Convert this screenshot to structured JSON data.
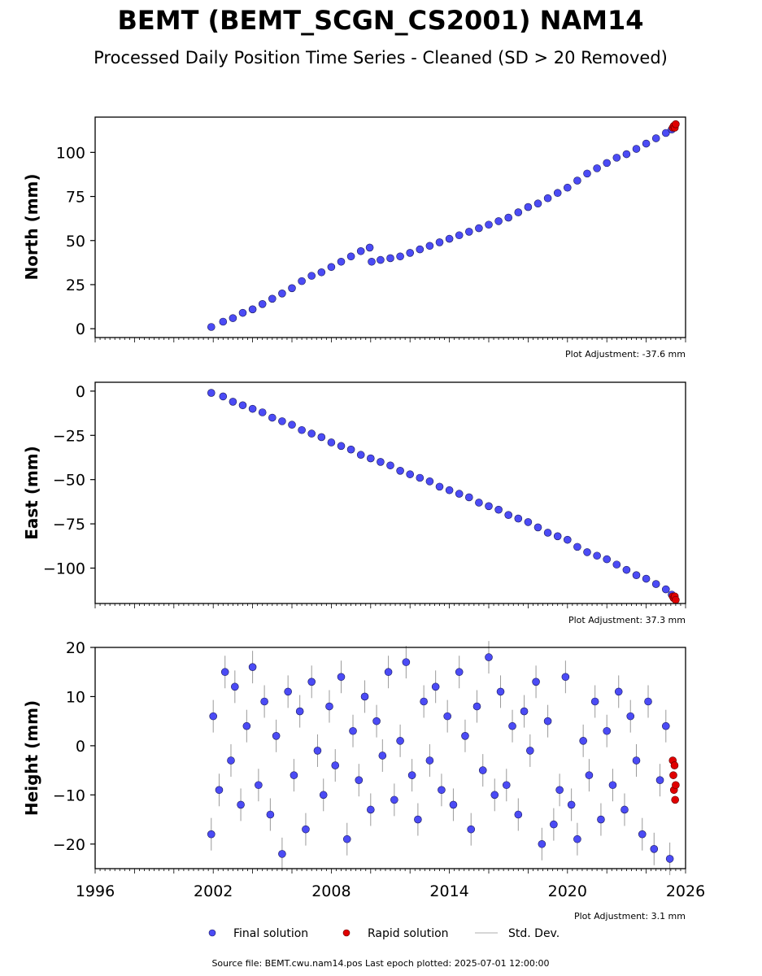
{
  "header": {
    "title": "BEMT (BEMT_SCGN_CS2001) NAM14",
    "subtitle": "Processed Daily Position Time Series - Cleaned (SD > 20 Removed)"
  },
  "chart_data": [
    {
      "type": "scatter",
      "panel": "north",
      "ylabel": "North (mm)",
      "xlim": [
        1996,
        2026
      ],
      "ylim": [
        -5,
        120
      ],
      "yticks": [
        0,
        25,
        50,
        75,
        100
      ],
      "ytick_labels": [
        "0",
        "25",
        "50",
        "75",
        "100"
      ],
      "adjustment": "Plot Adjustment: -37.6 mm",
      "series": [
        {
          "name": "Final solution",
          "color": "#4b4bf5",
          "x": [
            2001.9,
            2002.5,
            2003.0,
            2003.5,
            2004.0,
            2004.5,
            2005.0,
            2005.5,
            2006.0,
            2006.5,
            2007.0,
            2007.5,
            2008.0,
            2008.5,
            2009.0,
            2009.5,
            2009.95,
            2010.05,
            2010.5,
            2011.0,
            2011.5,
            2012.0,
            2012.5,
            2013.0,
            2013.5,
            2014.0,
            2014.5,
            2015.0,
            2015.5,
            2016.0,
            2016.5,
            2017.0,
            2017.5,
            2018.0,
            2018.5,
            2019.0,
            2019.5,
            2020.0,
            2020.5,
            2021.0,
            2021.5,
            2022.0,
            2022.5,
            2023.0,
            2023.5,
            2024.0,
            2024.5,
            2025.0,
            2025.3
          ],
          "y": [
            1,
            4,
            6,
            9,
            11,
            14,
            17,
            20,
            23,
            27,
            30,
            32,
            35,
            38,
            41,
            44,
            46,
            38,
            39,
            40,
            41,
            43,
            45,
            47,
            49,
            51,
            53,
            55,
            57,
            59,
            61,
            63,
            66,
            69,
            71,
            74,
            77,
            80,
            84,
            88,
            91,
            94,
            97,
            99,
            102,
            105,
            108,
            111,
            113
          ]
        },
        {
          "name": "Rapid solution",
          "color": "#e00000",
          "x": [
            2025.35,
            2025.4,
            2025.45,
            2025.5
          ],
          "y": [
            114,
            115,
            114,
            116
          ]
        }
      ]
    },
    {
      "type": "scatter",
      "panel": "east",
      "ylabel": "East (mm)",
      "xlim": [
        1996,
        2026
      ],
      "ylim": [
        -120,
        5
      ],
      "yticks": [
        0,
        -25,
        -50,
        -75,
        -100
      ],
      "ytick_labels": [
        "0",
        "−25",
        "−50",
        "−75",
        "−100"
      ],
      "adjustment": "Plot Adjustment: 37.3 mm",
      "series": [
        {
          "name": "Final solution",
          "color": "#4b4bf5",
          "x": [
            2001.9,
            2002.5,
            2003.0,
            2003.5,
            2004.0,
            2004.5,
            2005.0,
            2005.5,
            2006.0,
            2006.5,
            2007.0,
            2007.5,
            2008.0,
            2008.5,
            2009.0,
            2009.5,
            2010.0,
            2010.5,
            2011.0,
            2011.5,
            2012.0,
            2012.5,
            2013.0,
            2013.5,
            2014.0,
            2014.5,
            2015.0,
            2015.5,
            2016.0,
            2016.5,
            2017.0,
            2017.5,
            2018.0,
            2018.5,
            2019.0,
            2019.5,
            2020.0,
            2020.5,
            2021.0,
            2021.5,
            2022.0,
            2022.5,
            2023.0,
            2023.5,
            2024.0,
            2024.5,
            2025.0,
            2025.3
          ],
          "y": [
            -1,
            -3,
            -6,
            -8,
            -10,
            -12,
            -15,
            -17,
            -19,
            -22,
            -24,
            -26,
            -29,
            -31,
            -33,
            -36,
            -38,
            -40,
            -42,
            -45,
            -47,
            -49,
            -51,
            -54,
            -56,
            -58,
            -60,
            -63,
            -65,
            -67,
            -70,
            -72,
            -74,
            -77,
            -80,
            -82,
            -84,
            -88,
            -91,
            -93,
            -95,
            -98,
            -101,
            -104,
            -106,
            -109,
            -112,
            -115
          ]
        },
        {
          "name": "Rapid solution",
          "color": "#e00000",
          "x": [
            2025.35,
            2025.4,
            2025.45,
            2025.5
          ],
          "y": [
            -116,
            -117,
            -116,
            -118
          ]
        }
      ]
    },
    {
      "type": "scatter",
      "panel": "height",
      "ylabel": "Height (mm)",
      "xlim": [
        1996,
        2026
      ],
      "ylim": [
        -25,
        20
      ],
      "yticks": [
        20,
        10,
        0,
        -10,
        -20
      ],
      "ytick_labels": [
        "20",
        "10",
        "0",
        "−10",
        "−20"
      ],
      "xticks": [
        1996,
        2002,
        2008,
        2014,
        2020,
        2026
      ],
      "xtick_labels": [
        "1996",
        "2002",
        "2008",
        "2014",
        "2020",
        "2026"
      ],
      "adjustment": "Plot Adjustment: 3.1 mm",
      "series": [
        {
          "name": "Final solution",
          "color": "#4b4bf5",
          "x": [
            2001.9,
            2002.0,
            2002.3,
            2002.6,
            2002.9,
            2003.1,
            2003.4,
            2003.7,
            2004.0,
            2004.3,
            2004.6,
            2004.9,
            2005.2,
            2005.5,
            2005.8,
            2006.1,
            2006.4,
            2006.7,
            2007.0,
            2007.3,
            2007.6,
            2007.9,
            2008.2,
            2008.5,
            2008.8,
            2009.1,
            2009.4,
            2009.7,
            2010.0,
            2010.3,
            2010.6,
            2010.9,
            2011.2,
            2011.5,
            2011.8,
            2012.1,
            2012.4,
            2012.7,
            2013.0,
            2013.3,
            2013.6,
            2013.9,
            2014.2,
            2014.5,
            2014.8,
            2015.1,
            2015.4,
            2015.7,
            2016.0,
            2016.3,
            2016.6,
            2016.9,
            2017.2,
            2017.5,
            2017.8,
            2018.1,
            2018.4,
            2018.7,
            2019.0,
            2019.3,
            2019.6,
            2019.9,
            2020.2,
            2020.5,
            2020.8,
            2021.1,
            2021.4,
            2021.7,
            2022.0,
            2022.3,
            2022.6,
            2022.9,
            2023.2,
            2023.5,
            2023.8,
            2024.1,
            2024.4,
            2024.7,
            2025.0,
            2025.2
          ],
          "y": [
            -18,
            6,
            -9,
            15,
            -3,
            12,
            -12,
            4,
            16,
            -8,
            9,
            -14,
            2,
            -22,
            11,
            -6,
            7,
            -17,
            13,
            -1,
            -10,
            8,
            -4,
            14,
            -19,
            3,
            -7,
            10,
            -13,
            5,
            -2,
            15,
            -11,
            1,
            17,
            -6,
            -15,
            9,
            -3,
            12,
            -9,
            6,
            -12,
            15,
            2,
            -17,
            8,
            -5,
            18,
            -10,
            11,
            -8,
            4,
            -14,
            7,
            -1,
            13,
            -20,
            5,
            -16,
            -9,
            14,
            -12,
            -19,
            1,
            -6,
            9,
            -15,
            3,
            -8,
            11,
            -13,
            6,
            -3,
            -18,
            9,
            -21,
            -7,
            4,
            -23
          ]
        },
        {
          "name": "Rapid solution",
          "color": "#e00000",
          "x": [
            2025.35,
            2025.38,
            2025.41,
            2025.44,
            2025.47,
            2025.5
          ],
          "y": [
            -3,
            -6,
            -9,
            -4,
            -11,
            -8
          ]
        }
      ]
    }
  ],
  "legend": {
    "items": [
      {
        "label": "Final solution",
        "color": "#4b4bf5",
        "kind": "dot"
      },
      {
        "label": "Rapid solution",
        "color": "#e00000",
        "kind": "dot"
      },
      {
        "label": "Std. Dev.",
        "color": "#c8c8c8",
        "kind": "line"
      }
    ]
  },
  "footer": {
    "source": "Source file: BEMT.cwu.nam14.pos  Last epoch plotted: 2025-07-01 12:00:00"
  }
}
